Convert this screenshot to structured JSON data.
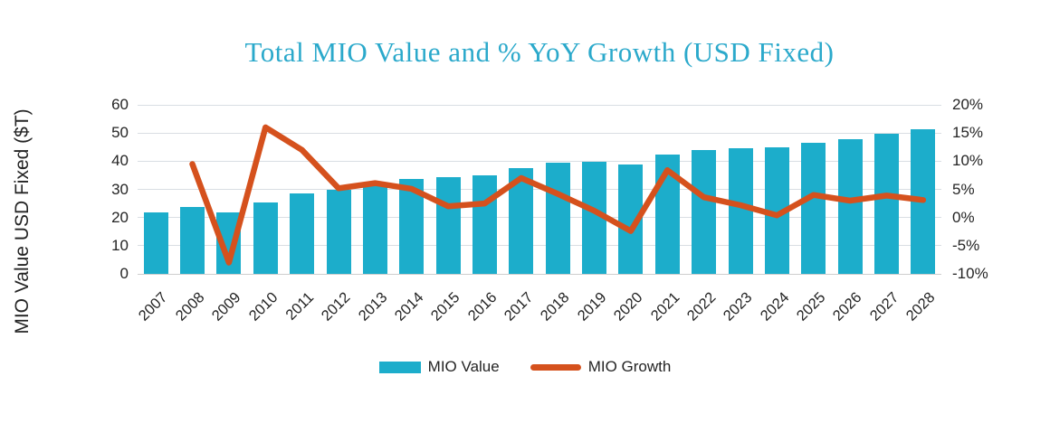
{
  "chart_title": "Total MIO Value and % YoY Growth (USD Fixed)",
  "colors": {
    "title": "#2BA9CB",
    "bar": "#1CADCB",
    "line": "#D5511D",
    "gridline": "#D9DEE3",
    "baseline": "#CDCDCD",
    "text": "#242424"
  },
  "legend": {
    "bar_label": "MIO Value",
    "line_label": "MIO Growth"
  },
  "chart_data": {
    "type": "combo-bar-line",
    "title": "Total MIO Value and % YoY Growth (USD Fixed)",
    "categories": [
      2007,
      2008,
      2009,
      2010,
      2011,
      2012,
      2013,
      2014,
      2015,
      2016,
      2017,
      2018,
      2019,
      2020,
      2021,
      2022,
      2023,
      2024,
      2025,
      2026,
      2027,
      2028
    ],
    "series": [
      {
        "name": "MIO Value",
        "type": "bar",
        "axis": "left",
        "unit": "$T",
        "values": [
          21.7,
          23.8,
          21.9,
          25.4,
          28.4,
          29.9,
          32.2,
          33.7,
          34.4,
          35.1,
          37.6,
          39.4,
          39.7,
          38.8,
          42.3,
          43.8,
          44.6,
          44.8,
          46.4,
          47.7,
          49.7,
          51.2
        ]
      },
      {
        "name": "MIO Growth",
        "type": "line",
        "axis": "right",
        "unit": "%",
        "values": [
          null,
          9.5,
          -8.0,
          16.0,
          12.0,
          5.2,
          6.1,
          5.1,
          2.0,
          2.5,
          7.0,
          4.2,
          1.2,
          -2.4,
          8.4,
          3.6,
          2.2,
          0.4,
          4.0,
          3.0,
          3.9,
          3.1
        ]
      }
    ],
    "left_axis": {
      "title": "MIO Value USD Fixed ($T)",
      "min": 0,
      "max": 60,
      "ticks": [
        0,
        10,
        20,
        30,
        40,
        50,
        60
      ],
      "tick_labels": [
        "0",
        "10",
        "20",
        "30",
        "40",
        "50",
        "60"
      ]
    },
    "right_axis": {
      "title": "",
      "min": -10,
      "max": 20,
      "ticks": [
        -10,
        -5,
        0,
        5,
        10,
        15,
        20
      ],
      "tick_labels": [
        "-10%",
        "-5%",
        "0%",
        "5%",
        "10%",
        "15%",
        "20%"
      ]
    },
    "grid": "horizontal-only",
    "legend_position": "bottom"
  }
}
